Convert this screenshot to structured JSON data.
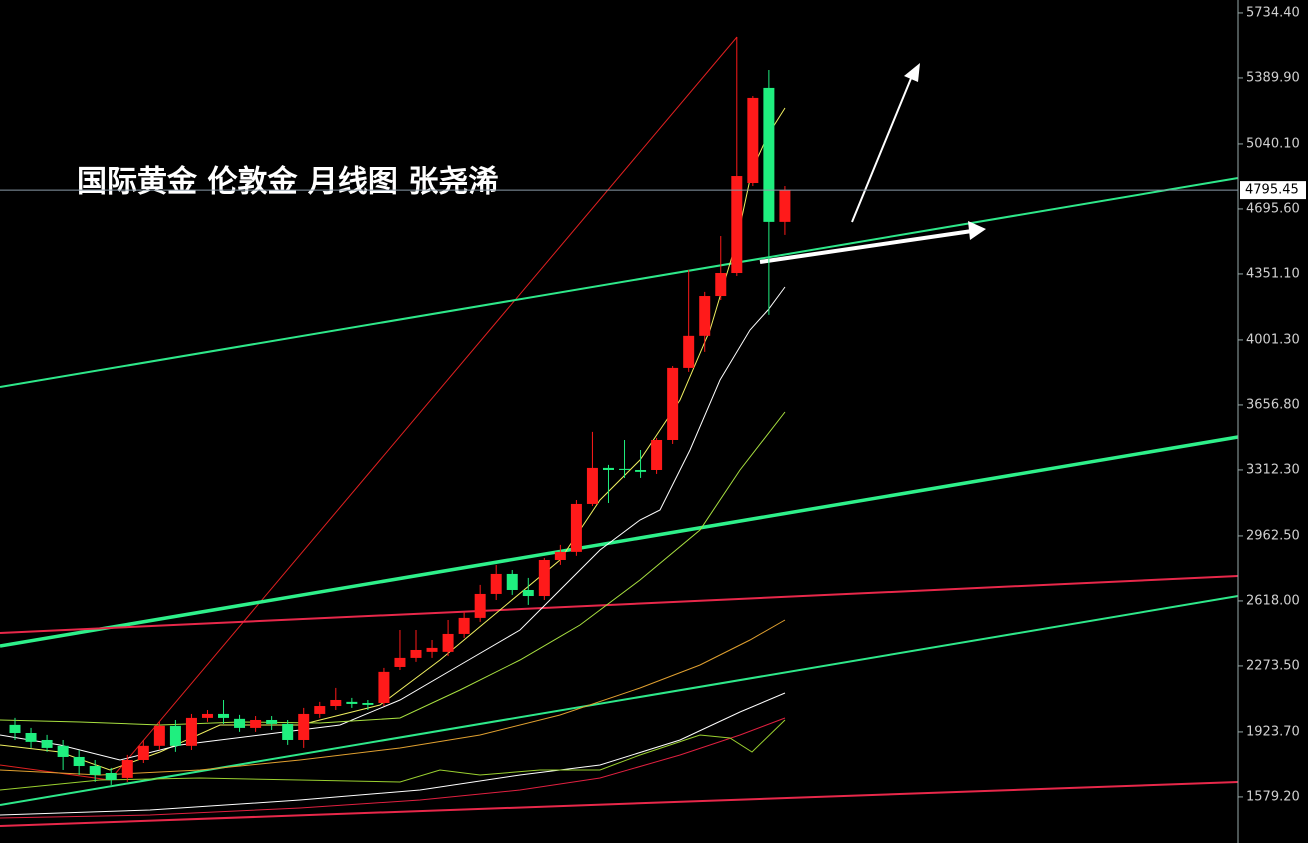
{
  "chart_data": {
    "type": "candlestick",
    "title": "国际黄金 伦敦金 月线图 张尧浠",
    "categories": [
      null,
      null,
      null,
      null,
      null,
      null,
      null,
      null,
      null,
      null,
      null,
      null,
      null,
      null,
      null,
      null,
      null,
      null,
      null,
      null,
      null,
      null,
      null,
      null,
      null,
      null,
      null,
      null,
      null,
      null,
      null,
      null,
      null,
      null,
      null,
      null,
      null,
      null,
      null,
      null,
      null,
      null,
      null,
      null,
      null,
      null,
      null,
      null,
      null
    ],
    "open": [
      1961,
      1918,
      1881,
      1850,
      1791,
      1743,
      1706,
      1680,
      1775,
      1850,
      1956,
      1850,
      1998,
      2019,
      1993,
      1945,
      1987,
      1966,
      1881,
      2019,
      2061,
      2083,
      2077,
      2077,
      2268,
      2316,
      2348,
      2348,
      2443,
      2528,
      2655,
      2761,
      2676,
      2644,
      2835,
      2878,
      3132,
      3323,
      3318,
      3312,
      3312,
      3471,
      3853,
      4023,
      4234,
      4356,
      4833,
      5337,
      4627
    ],
    "high": [
      1998,
      1945,
      1908,
      1881,
      1828,
      1775,
      1733,
      1802,
      1881,
      1977,
      1987,
      2019,
      2040,
      2093,
      2014,
      2008,
      2008,
      1987,
      2051,
      2083,
      2157,
      2104,
      2093,
      2263,
      2464,
      2464,
      2411,
      2517,
      2560,
      2703,
      2809,
      2782,
      2740,
      2846,
      2915,
      3153,
      3514,
      3339,
      3471,
      3418,
      3482,
      3863,
      4372,
      4256,
      4552,
      5607,
      5294,
      5432,
      4817
    ],
    "low": [
      1881,
      1839,
      1818,
      1722,
      1696,
      1659,
      1643,
      1659,
      1759,
      1828,
      1818,
      1828,
      1977,
      1966,
      1924,
      1924,
      1934,
      1855,
      1839,
      1998,
      2040,
      2051,
      2040,
      2061,
      2252,
      2295,
      2316,
      2326,
      2422,
      2507,
      2623,
      2650,
      2597,
      2623,
      2809,
      2857,
      3121,
      3137,
      3270,
      3270,
      3291,
      3450,
      3832,
      3938,
      4213,
      4340,
      4817,
      4134,
      4558
    ],
    "close": [
      1918,
      1871,
      1839,
      1791,
      1743,
      1696,
      1669,
      1775,
      1850,
      1956,
      1850,
      1998,
      2019,
      1998,
      1945,
      1987,
      1966,
      1881,
      2019,
      2061,
      2093,
      2072,
      2067,
      2242,
      2316,
      2358,
      2369,
      2443,
      2528,
      2655,
      2761,
      2676,
      2644,
      2835,
      2878,
      3132,
      3323,
      3312,
      3312,
      3302,
      3471,
      3853,
      4023,
      4234,
      4356,
      4870,
      5284,
      4627,
      4795
    ],
    "up_color": "#ff1a1a",
    "down_color": "#1fef7f",
    "last_price": {
      "value": 4795.45,
      "label": "4795.45"
    },
    "ylim": [
      1335,
      5803
    ],
    "yticks": [
      {
        "value": 5734.4,
        "label": "5734.40"
      },
      {
        "value": 5389.9,
        "label": "5389.90"
      },
      {
        "value": 5040.1,
        "label": "5040.10"
      },
      {
        "value": 4695.6,
        "label": "4695.60"
      },
      {
        "value": 4351.1,
        "label": "4351.10"
      },
      {
        "value": 4001.3,
        "label": "4001.30"
      },
      {
        "value": 3656.8,
        "label": "3656.80"
      },
      {
        "value": 3312.3,
        "label": "3312.30"
      },
      {
        "value": 2962.5,
        "label": "2962.50"
      },
      {
        "value": 2618,
        "label": "2618.00"
      },
      {
        "value": 2273.5,
        "label": "2273.50"
      },
      {
        "value": 1923.7,
        "label": "1923.70"
      },
      {
        "value": 1579.2,
        "label": "1579.20"
      }
    ]
  }
}
